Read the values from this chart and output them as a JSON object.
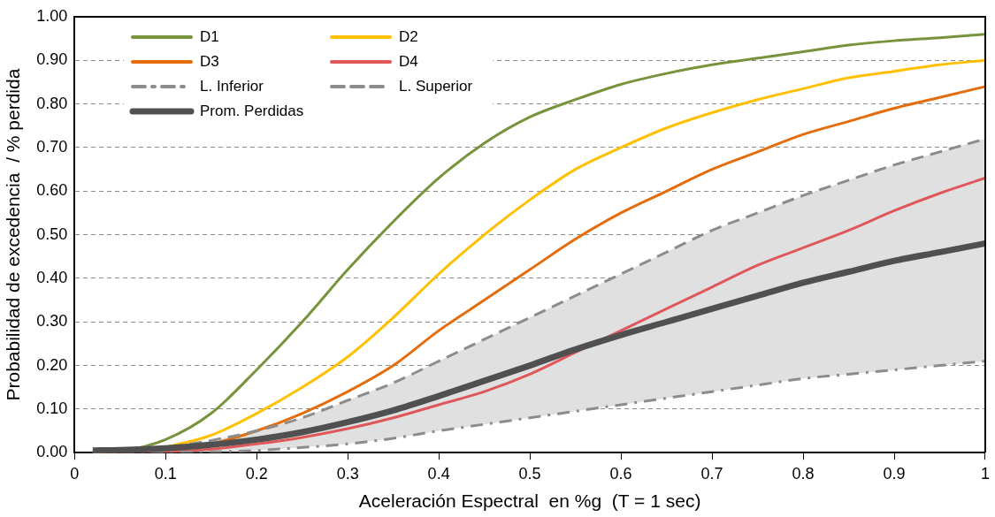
{
  "chart_data": {
    "type": "line",
    "xlabel": "Aceleración Espectral  en %g  (T = 1 sec)",
    "ylabel": "Probabilidad de excedencia  / % perdida",
    "x": [
      0.02,
      0.05,
      0.1,
      0.15,
      0.2,
      0.25,
      0.3,
      0.35,
      0.4,
      0.45,
      0.5,
      0.55,
      0.6,
      0.65,
      0.7,
      0.75,
      0.8,
      0.85,
      0.9,
      0.95,
      1.0
    ],
    "xlim": [
      0,
      1
    ],
    "xticks": [
      0,
      0.1,
      0.2,
      0.3,
      0.4,
      0.5,
      0.6,
      0.7,
      0.8,
      0.9,
      1
    ],
    "ylim": [
      0,
      1
    ],
    "yticks": [
      {
        "value": 0,
        "label": "0.00"
      },
      {
        "value": 0.1,
        "label": "0.10"
      },
      {
        "value": 0.2,
        "label": "0.20"
      },
      {
        "value": 0.3,
        "label": "0.30"
      },
      {
        "value": 0.4,
        "label": "0.40"
      },
      {
        "value": 0.5,
        "label": "0.50"
      },
      {
        "value": 0.6,
        "label": "0.60"
      },
      {
        "value": 0.7,
        "label": "0.70"
      },
      {
        "value": 0.8,
        "label": "0.80"
      },
      {
        "value": 0.9,
        "label": "0.90"
      },
      {
        "value": 1,
        "label": "1.00"
      }
    ],
    "grid": "y",
    "legend": "top left",
    "marker": "none",
    "series": [
      {
        "name": "D1",
        "color": "#77933c",
        "values": [
          0.0,
          0.003,
          0.03,
          0.09,
          0.19,
          0.3,
          0.42,
          0.53,
          0.63,
          0.71,
          0.77,
          0.81,
          0.845,
          0.87,
          0.89,
          0.905,
          0.92,
          0.935,
          0.945,
          0.952,
          0.96
        ]
      },
      {
        "name": "D2",
        "color": "#ffc000",
        "values": [
          null,
          null,
          0.012,
          0.04,
          0.09,
          0.15,
          0.22,
          0.31,
          0.41,
          0.5,
          0.58,
          0.65,
          0.7,
          0.745,
          0.78,
          0.81,
          0.835,
          0.86,
          0.875,
          0.89,
          0.9
        ]
      },
      {
        "name": "D3",
        "color": "#e46c0a",
        "values": [
          null,
          null,
          0.005,
          0.02,
          0.05,
          0.09,
          0.14,
          0.2,
          0.28,
          0.35,
          0.42,
          0.49,
          0.55,
          0.6,
          0.65,
          0.69,
          0.73,
          0.76,
          0.79,
          0.815,
          0.84
        ]
      },
      {
        "name": "D4",
        "color": "#e0575a",
        "values": [
          0,
          0,
          0.002,
          0.008,
          0.02,
          0.035,
          0.055,
          0.08,
          0.11,
          0.14,
          0.18,
          0.23,
          0.28,
          0.33,
          0.38,
          0.43,
          0.47,
          0.51,
          0.555,
          0.595,
          0.63
        ]
      },
      {
        "name": "L. Inferior",
        "color": "#8c8c8c",
        "line_style": "dashdot",
        "values": [
          0,
          0,
          0.001,
          0.002,
          0.005,
          0.012,
          0.02,
          0.033,
          0.05,
          0.065,
          0.08,
          0.095,
          0.11,
          0.125,
          0.14,
          0.155,
          0.17,
          0.18,
          0.19,
          0.2,
          0.21
        ]
      },
      {
        "name": "L. Superior",
        "color": "#8c8c8c",
        "line_style": "dashed",
        "values": [
          0.002,
          0.004,
          0.012,
          0.028,
          0.05,
          0.08,
          0.12,
          0.16,
          0.21,
          0.26,
          0.31,
          0.36,
          0.41,
          0.46,
          0.51,
          0.55,
          0.59,
          0.625,
          0.66,
          0.69,
          0.72
        ]
      },
      {
        "name": "Prom. Perdidas",
        "color": "#505050",
        "values": [
          0.005,
          0.006,
          0.01,
          0.018,
          0.03,
          0.047,
          0.07,
          0.097,
          0.13,
          0.165,
          0.2,
          0.237,
          0.27,
          0.3,
          0.33,
          0.36,
          0.39,
          0.415,
          0.44,
          0.46,
          0.48
        ],
        "lower": [
          0,
          0,
          0.001,
          0.002,
          0.005,
          0.012,
          0.02,
          0.033,
          0.05,
          0.065,
          0.08,
          0.095,
          0.11,
          0.125,
          0.14,
          0.155,
          0.17,
          0.18,
          0.19,
          0.2,
          0.21
        ],
        "upper": [
          0.002,
          0.004,
          0.012,
          0.028,
          0.05,
          0.08,
          0.12,
          0.16,
          0.21,
          0.26,
          0.31,
          0.36,
          0.41,
          0.46,
          0.51,
          0.55,
          0.59,
          0.625,
          0.66,
          0.69,
          0.72
        ]
      }
    ]
  }
}
